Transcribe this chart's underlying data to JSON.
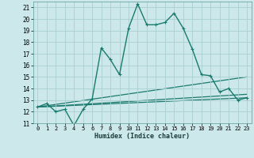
{
  "title": "",
  "xlabel": "Humidex (Indice chaleur)",
  "bg_color": "#cce8ea",
  "grid_color": "#aacfd2",
  "line_color": "#1a7a6e",
  "xlim": [
    -0.5,
    23.5
  ],
  "ylim": [
    11,
    21.5
  ],
  "yticks": [
    11,
    12,
    13,
    14,
    15,
    16,
    17,
    18,
    19,
    20,
    21
  ],
  "xticks": [
    0,
    1,
    2,
    3,
    4,
    5,
    6,
    7,
    8,
    9,
    10,
    11,
    12,
    13,
    14,
    15,
    16,
    17,
    18,
    19,
    20,
    21,
    22,
    23
  ],
  "series_main": {
    "x": [
      0,
      1,
      2,
      3,
      4,
      5,
      6,
      7,
      8,
      9,
      10,
      11,
      12,
      13,
      14,
      15,
      16,
      17,
      18,
      19,
      20,
      21,
      22,
      23
    ],
    "y": [
      12.4,
      12.7,
      12.0,
      12.2,
      10.8,
      12.2,
      13.1,
      17.5,
      16.5,
      15.2,
      19.2,
      21.3,
      19.5,
      19.5,
      19.7,
      20.5,
      19.2,
      17.4,
      15.2,
      15.1,
      13.7,
      14.0,
      13.0,
      13.2
    ]
  },
  "series_lines": [
    {
      "x0": 0,
      "y0": 12.4,
      "x1": 23,
      "y1": 15.0
    },
    {
      "x0": 0,
      "y0": 12.4,
      "x1": 23,
      "y1": 13.5
    },
    {
      "x0": 0,
      "y0": 12.4,
      "x1": 23,
      "y1": 13.2
    }
  ]
}
